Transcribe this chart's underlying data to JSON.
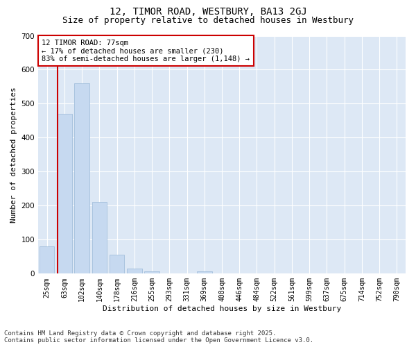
{
  "title1": "12, TIMOR ROAD, WESTBURY, BA13 2GJ",
  "title2": "Size of property relative to detached houses in Westbury",
  "xlabel": "Distribution of detached houses by size in Westbury",
  "ylabel": "Number of detached properties",
  "categories": [
    "25sqm",
    "63sqm",
    "102sqm",
    "140sqm",
    "178sqm",
    "216sqm",
    "255sqm",
    "293sqm",
    "331sqm",
    "369sqm",
    "408sqm",
    "446sqm",
    "484sqm",
    "522sqm",
    "561sqm",
    "599sqm",
    "637sqm",
    "675sqm",
    "714sqm",
    "752sqm",
    "790sqm"
  ],
  "values": [
    80,
    470,
    560,
    210,
    55,
    15,
    7,
    0,
    0,
    7,
    0,
    0,
    0,
    0,
    0,
    0,
    0,
    0,
    0,
    0,
    0
  ],
  "bar_color": "#c6d9f0",
  "bar_edgecolor": "#9ab8d8",
  "vline_color": "#cc0000",
  "annotation_text": "12 TIMOR ROAD: 77sqm\n← 17% of detached houses are smaller (230)\n83% of semi-detached houses are larger (1,148) →",
  "annotation_box_color": "#ffffff",
  "annotation_box_edgecolor": "#cc0000",
  "ylim": [
    0,
    700
  ],
  "yticks": [
    0,
    100,
    200,
    300,
    400,
    500,
    600,
    700
  ],
  "background_color": "#dde8f5",
  "fig_facecolor": "#ffffff",
  "footer_line1": "Contains HM Land Registry data © Crown copyright and database right 2025.",
  "footer_line2": "Contains public sector information licensed under the Open Government Licence v3.0.",
  "title_fontsize": 10,
  "subtitle_fontsize": 9,
  "tick_fontsize": 7,
  "ylabel_fontsize": 8,
  "xlabel_fontsize": 8,
  "annotation_fontsize": 7.5,
  "footer_fontsize": 6.5
}
